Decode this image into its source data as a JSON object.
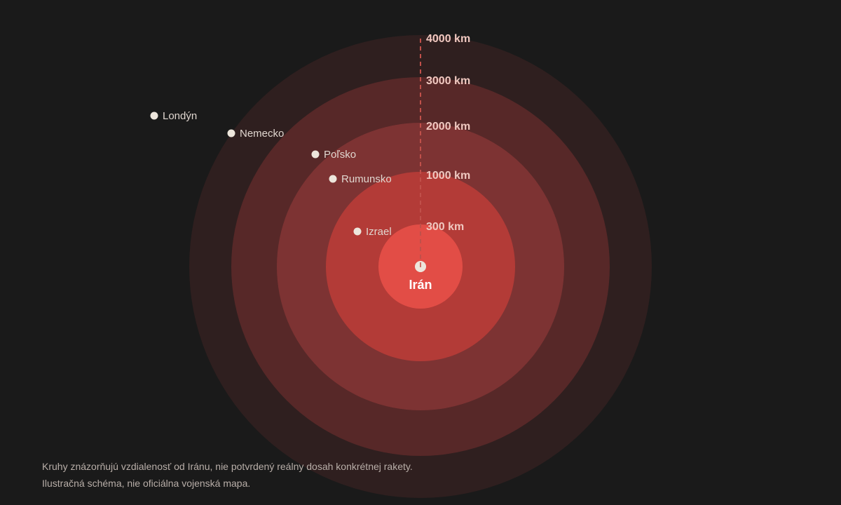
{
  "center": {
    "label": "Irán"
  },
  "rings": [
    {
      "label": "4000 km",
      "color": "#2f1f1f"
    },
    {
      "label": "3000 km",
      "color": "#572828"
    },
    {
      "label": "2000 km",
      "color": "#7d3333"
    },
    {
      "label": "1000 km",
      "color": "#b33b37"
    },
    {
      "label": "300 km",
      "color": "#e24d46"
    }
  ],
  "places": [
    {
      "name": "Londýn"
    },
    {
      "name": "Nemecko"
    },
    {
      "name": "Poľsko"
    },
    {
      "name": "Rumunsko"
    },
    {
      "name": "Izrael"
    }
  ],
  "colors": {
    "background": "#1a1a1a",
    "axis_line": "#c0504a",
    "marker": "#ede6dc"
  },
  "footer": {
    "line1": "Kruhy znázorňujú vzdialenosť od Iránu, nie potvrdený reálny dosah konkrétnej rakety.",
    "line2": "Ilustračná schéma, nie oficiálna vojenská mapa."
  }
}
